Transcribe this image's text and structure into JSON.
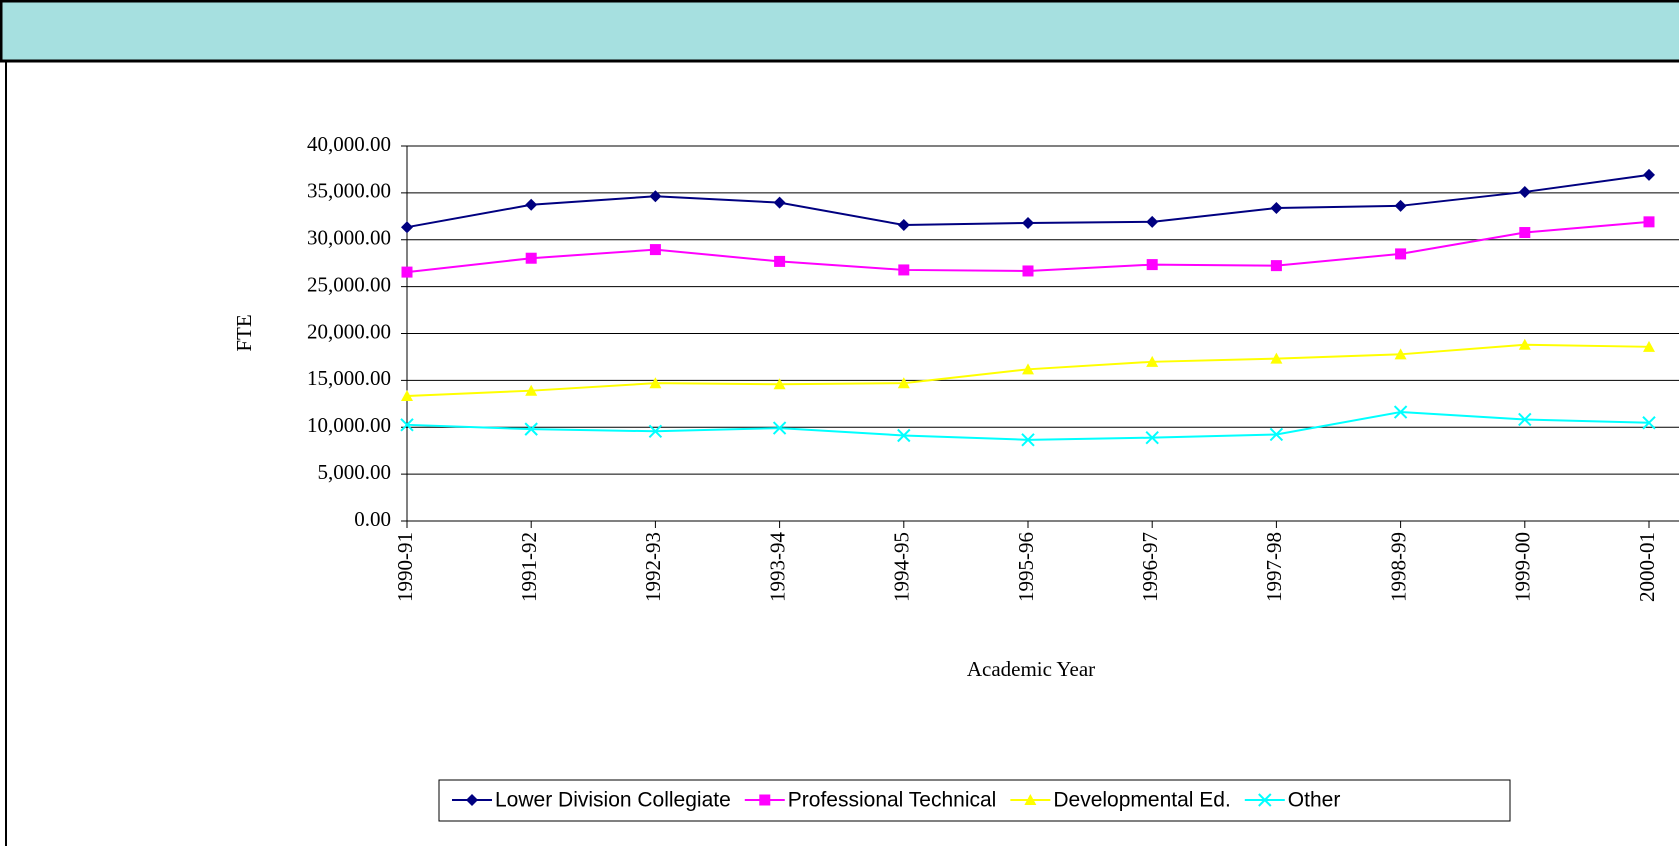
{
  "chart_data": {
    "type": "line",
    "x_label": "Academic Year",
    "y_label": "FTE",
    "categories": [
      "1990-91",
      "1991-92",
      "1992-93",
      "1993-94",
      "1994-95",
      "1995-96",
      "1996-97",
      "1997-98",
      "1998-99",
      "1999-00",
      "2000-01"
    ],
    "series": [
      {
        "name": "Lower Division Collegiate",
        "color": "#000080",
        "marker": "diamond",
        "values": [
          31340,
          33730,
          34640,
          33960,
          31570,
          31790,
          31910,
          33390,
          33620,
          35100,
          36920
        ]
      },
      {
        "name": "Professional Technical",
        "color": "#ff00ff",
        "marker": "square",
        "values": [
          26550,
          28030,
          28950,
          27690,
          26780,
          26670,
          27350,
          27240,
          28490,
          30770,
          31910
        ]
      },
      {
        "name": "Developmental Ed.",
        "color": "#ffff00",
        "marker": "triangle",
        "values": [
          13330,
          13900,
          14700,
          14590,
          14700,
          16180,
          16980,
          17320,
          17780,
          18800,
          18580
        ]
      },
      {
        "name": "Other",
        "color": "#00ffff",
        "marker": "x",
        "values": [
          10260,
          9800,
          9570,
          9910,
          9120,
          8660,
          8890,
          9230,
          11620,
          10830,
          10480
        ]
      }
    ],
    "ylim": [
      0,
      40000
    ],
    "yticks": [
      {
        "value": 0,
        "label": "0.00"
      },
      {
        "value": 5000,
        "label": "5,000.00"
      },
      {
        "value": 10000,
        "label": "10,000.00"
      },
      {
        "value": 15000,
        "label": "15,000.00"
      },
      {
        "value": 20000,
        "label": "20,000.00"
      },
      {
        "value": 25000,
        "label": "25,000.00"
      },
      {
        "value": 30000,
        "label": "30,000.00"
      },
      {
        "value": 35000,
        "label": "35,000.00"
      },
      {
        "value": 40000,
        "label": "40,000.00"
      }
    ],
    "grid": true
  }
}
